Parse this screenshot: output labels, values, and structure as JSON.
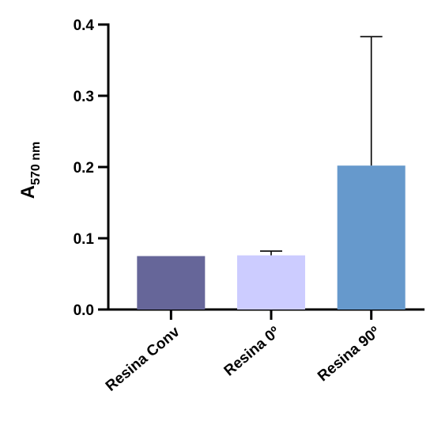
{
  "chart_data": {
    "type": "bar",
    "title": "",
    "xlabel": "",
    "ylabel": "A",
    "ylabel_subscript": "570 nm",
    "categories": [
      "Resina Conv",
      "Resina 0º",
      "Resina 90º"
    ],
    "values": [
      0.075,
      0.076,
      0.202
    ],
    "error_upper": [
      0.075,
      0.082,
      0.383
    ],
    "colors": [
      "#666699",
      "#CCCCFF",
      "#6699CC"
    ],
    "ylim": [
      0.0,
      0.4
    ],
    "yticks": [
      {
        "value": 0.0,
        "label": "0.0"
      },
      {
        "value": 0.1,
        "label": "0.1"
      },
      {
        "value": 0.2,
        "label": "0.2"
      },
      {
        "value": 0.3,
        "label": "0.3"
      },
      {
        "value": 0.4,
        "label": "0.4"
      }
    ],
    "grid": false,
    "legend": "none"
  }
}
